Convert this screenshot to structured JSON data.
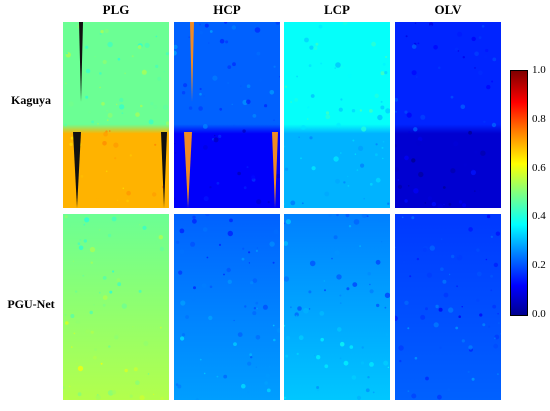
{
  "columns": [
    "PLG",
    "HCP",
    "LCP",
    "OLV"
  ],
  "rows": [
    "Kaguya",
    "PGU-Net"
  ],
  "colorbar": {
    "ticks": [
      "1.0",
      "0.8",
      "0.6",
      "0.4",
      "0.2",
      "0.0"
    ],
    "min": 0.0,
    "max": 1.0,
    "colormap": "jet"
  },
  "panels": [
    {
      "row": "Kaguya",
      "col": "PLG",
      "top_level": 0.48,
      "bottom_level": 0.7
    },
    {
      "row": "Kaguya",
      "col": "HCP",
      "top_level": 0.22,
      "bottom_level": 0.12
    },
    {
      "row": "Kaguya",
      "col": "LCP",
      "top_level": 0.38,
      "bottom_level": 0.3
    },
    {
      "row": "Kaguya",
      "col": "OLV",
      "top_level": 0.16,
      "bottom_level": 0.08
    },
    {
      "row": "PGU-Net",
      "col": "PLG",
      "top_level": 0.48,
      "bottom_level": 0.55
    },
    {
      "row": "PGU-Net",
      "col": "HCP",
      "top_level": 0.22,
      "bottom_level": 0.28
    },
    {
      "row": "PGU-Net",
      "col": "LCP",
      "top_level": 0.25,
      "bottom_level": 0.32
    },
    {
      "row": "PGU-Net",
      "col": "OLV",
      "top_level": 0.18,
      "bottom_level": 0.22
    }
  ]
}
